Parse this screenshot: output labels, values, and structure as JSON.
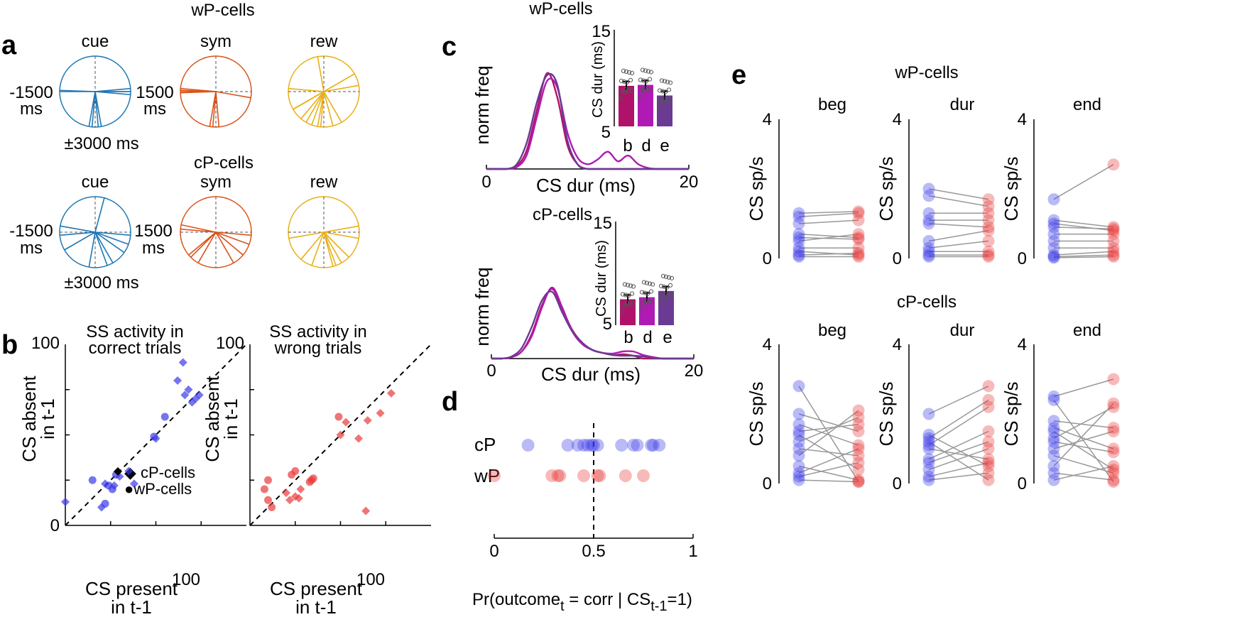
{
  "colors": {
    "cue": "#1f77b4",
    "sym": "#d9541a",
    "rew": "#e8b017",
    "wP": "#e83a3a",
    "cP": "#3a3ae8",
    "bar_b": "#b0126a",
    "bar_d": "#b01ab4",
    "bar_e": "#6b3a92"
  },
  "panels": {
    "a": {
      "label": "a",
      "top_title": "wP-cells",
      "mid_title": "cP-cells",
      "cue_label": "cue",
      "sym_label": "sym",
      "rew_label": "rew",
      "left_tick": "-1500",
      "left_unit": "ms",
      "right_tick": "1500",
      "right_unit": "ms",
      "bottom_tick": "±3000 ms"
    },
    "b": {
      "label": "b",
      "legend_cp": "◆ cP-cells",
      "legend_wp": "●wP-cells",
      "left_title_1": "SS activity in",
      "left_title_2": "correct trials",
      "right_title_1": "SS activity in",
      "right_title_2": "wrong trials",
      "ylabel_1": "CS absent",
      "ylabel_2": "in t-1",
      "xlabel_1": "CS present",
      "xlabel_2": "in t-1",
      "tick_0": "0",
      "tick_100": "100"
    },
    "c": {
      "label": "c",
      "wp_title": "wP-cells",
      "cp_title": "cP-cells",
      "ylabel": "norm freq",
      "xlabel": "CS dur (ms)",
      "xtick_0": "0",
      "xtick_20": "20",
      "inset_ylabel": "CS dur (ms)",
      "inset_tick_15": "15",
      "inset_tick_5": "5",
      "bar_b": "b",
      "bar_d": "d",
      "bar_e": "e"
    },
    "d": {
      "label": "d",
      "row_cp": "cP",
      "row_wp": "wP",
      "xtick_0": "0",
      "xtick_05": "0.5",
      "xtick_1": "1",
      "xlabel_main": "Pr(outcome",
      "xlabel_sub1": "t",
      "xlabel_mid": " = corr | CS",
      "xlabel_sub2": "t-1",
      "xlabel_end": "=1)"
    },
    "e": {
      "label": "e",
      "wp_title": "wP-cells",
      "cp_title": "cP-cells",
      "beg": "beg",
      "dur": "dur",
      "end": "end",
      "ylabel": "CS sp/s",
      "tick_4": "4",
      "tick_0": "0"
    }
  },
  "chart_data": [
    {
      "type": "polar",
      "name": "a-wP",
      "series": [
        {
          "name": "cue",
          "angles_deg": [
            0,
            0,
            5,
            -80,
            -85,
            -95,
            -100,
            178,
            180,
            -5
          ]
        },
        {
          "name": "sym",
          "angles_deg": [
            -10,
            -95,
            -100,
            -85,
            175,
            180,
            178,
            182
          ]
        },
        {
          "name": "rew",
          "angles_deg": [
            -95,
            -100,
            -110,
            -130,
            -60,
            -120,
            -150,
            -150,
            175,
            10,
            30,
            100,
            -75
          ]
        }
      ]
    },
    {
      "type": "polar",
      "name": "a-cP",
      "series": [
        {
          "name": "cue",
          "angles_deg": [
            -5,
            -20,
            -35,
            -60,
            -70,
            -100,
            -150,
            -175,
            170,
            75
          ]
        },
        {
          "name": "sym",
          "angles_deg": [
            -5,
            -20,
            -40,
            -60,
            -120,
            -135,
            -140,
            175,
            168
          ]
        },
        {
          "name": "rew",
          "angles_deg": [
            -10,
            -45,
            -60,
            -70,
            -75,
            -110,
            -130,
            -170,
            10
          ]
        }
      ]
    },
    {
      "type": "scatter",
      "name": "b-correct",
      "xlim": [
        0,
        100
      ],
      "ylim": [
        0,
        100
      ],
      "wP_points": [
        [
          15,
          25
        ],
        [
          22,
          12
        ],
        [
          24,
          22
        ],
        [
          26,
          20
        ],
        [
          28,
          28
        ],
        [
          49,
          49
        ],
        [
          55,
          60
        ]
      ],
      "cP_points": [
        [
          0,
          13
        ],
        [
          20,
          10
        ],
        [
          22,
          23
        ],
        [
          27,
          22
        ],
        [
          38,
          23
        ],
        [
          50,
          48
        ],
        [
          62,
          80
        ],
        [
          65,
          90
        ],
        [
          66,
          72
        ],
        [
          74,
          72
        ],
        [
          72,
          70
        ],
        [
          68,
          75
        ],
        [
          70,
          68
        ],
        [
          35,
          30
        ],
        [
          30,
          27
        ]
      ]
    },
    {
      "type": "scatter",
      "name": "b-wrong",
      "xlim": [
        0,
        100
      ],
      "ylim": [
        0,
        100
      ],
      "wP_points": [
        [
          8,
          20
        ],
        [
          10,
          14
        ],
        [
          10,
          25
        ],
        [
          12,
          10
        ],
        [
          23,
          28
        ],
        [
          25,
          30
        ],
        [
          34,
          25
        ],
        [
          35,
          26
        ],
        [
          33,
          24
        ],
        [
          49,
          60
        ]
      ],
      "cP_points": [
        [
          20,
          18
        ],
        [
          25,
          16
        ],
        [
          27,
          15
        ],
        [
          28,
          20
        ],
        [
          22,
          14
        ],
        [
          50,
          50
        ],
        [
          53,
          57
        ],
        [
          60,
          48
        ],
        [
          65,
          58
        ],
        [
          72,
          62
        ],
        [
          78,
          73
        ],
        [
          64,
          8
        ]
      ]
    },
    {
      "type": "line",
      "name": "c-wP-density",
      "xlim": [
        0,
        20
      ],
      "x": [
        0,
        1,
        2,
        3,
        4,
        5,
        6,
        7,
        8,
        9,
        10,
        11,
        12,
        13,
        14,
        15,
        16,
        17,
        18,
        19,
        20
      ],
      "series": [
        {
          "name": "b",
          "values": [
            0,
            0,
            0,
            0.03,
            0.2,
            0.62,
            1.0,
            0.75,
            0.25,
            0.05,
            0,
            0,
            0,
            0,
            0,
            0,
            0,
            0,
            0,
            0,
            0
          ]
        },
        {
          "name": "d",
          "values": [
            0,
            0,
            0,
            0.02,
            0.15,
            0.55,
            0.92,
            0.85,
            0.38,
            0.12,
            0.05,
            0.1,
            0.18,
            0.08,
            0.14,
            0.05,
            0.01,
            0,
            0,
            0,
            0
          ]
        },
        {
          "name": "e",
          "values": [
            0,
            0,
            0,
            0.05,
            0.28,
            0.7,
            0.98,
            0.88,
            0.3,
            0.05,
            0,
            0,
            0,
            0,
            0,
            0,
            0,
            0,
            0,
            0,
            0
          ]
        }
      ]
    },
    {
      "type": "bar",
      "name": "c-wP-inset",
      "categories": [
        "b",
        "d",
        "e"
      ],
      "values": [
        9.2,
        9.3,
        8.2
      ],
      "ylim": [
        5,
        15
      ]
    },
    {
      "type": "line",
      "name": "c-cP-density",
      "xlim": [
        0,
        20
      ],
      "x": [
        0,
        1,
        2,
        3,
        4,
        5,
        6,
        7,
        8,
        9,
        10,
        11,
        12,
        13,
        14,
        15,
        16,
        17,
        18,
        19,
        20
      ],
      "series": [
        {
          "name": "b",
          "values": [
            0,
            0,
            0.02,
            0.1,
            0.35,
            0.75,
            0.98,
            0.7,
            0.4,
            0.22,
            0.12,
            0.08,
            0.05,
            0.06,
            0.04,
            0,
            0,
            0,
            0,
            0,
            0
          ]
        },
        {
          "name": "d",
          "values": [
            0,
            0,
            0.02,
            0.1,
            0.32,
            0.72,
            1.0,
            0.72,
            0.38,
            0.2,
            0.12,
            0.08,
            0.07,
            0.1,
            0.1,
            0.05,
            0.02,
            0,
            0,
            0,
            0
          ]
        },
        {
          "name": "e",
          "values": [
            0,
            0,
            0.03,
            0.15,
            0.45,
            0.82,
            0.94,
            0.65,
            0.38,
            0.22,
            0.12,
            0.08,
            0.05,
            0.04,
            0.04,
            0.03,
            0.01,
            0,
            0,
            0,
            0
          ]
        }
      ]
    },
    {
      "type": "bar",
      "name": "c-cP-inset",
      "categories": [
        "b",
        "d",
        "e"
      ],
      "values": [
        7.5,
        7.7,
        8.3
      ],
      "ylim": [
        5,
        15
      ]
    },
    {
      "type": "scatter",
      "name": "d",
      "xlim": [
        0,
        1
      ],
      "cP": [
        0.17,
        0.37,
        0.42,
        0.45,
        0.47,
        0.49,
        0.5,
        0.52,
        0.64,
        0.7,
        0.72,
        0.79,
        0.8,
        0.83
      ],
      "wP": [
        0.0,
        0.29,
        0.32,
        0.33,
        0.45,
        0.52,
        0.53,
        0.66,
        0.75
      ]
    },
    {
      "type": "paired",
      "name": "e-wP",
      "ylim": [
        0,
        4
      ],
      "panels": [
        {
          "name": "beg",
          "before": [
            1.3,
            1.2,
            1.0,
            0.7,
            0.6,
            0.5,
            0.3,
            0.2,
            0.1,
            0.05
          ],
          "after": [
            1.35,
            1.3,
            1.1,
            0.6,
            0.55,
            0.7,
            0.3,
            0.1,
            0.15,
            0.05
          ]
        },
        {
          "name": "dur",
          "before": [
            2.0,
            1.8,
            1.3,
            1.1,
            1.0,
            0.5,
            0.3,
            0.2,
            0.1,
            0.05
          ],
          "after": [
            1.7,
            1.5,
            1.3,
            1.1,
            0.9,
            0.8,
            0.5,
            0.2,
            0.1,
            0.05
          ]
        },
        {
          "name": "end",
          "before": [
            1.7,
            1.1,
            1.0,
            0.9,
            0.7,
            0.5,
            0.3,
            0.1,
            0.05,
            0.02
          ],
          "after": [
            2.7,
            0.9,
            0.8,
            0.85,
            0.7,
            0.5,
            0.3,
            0.2,
            0.1,
            0.05
          ]
        }
      ]
    },
    {
      "type": "paired",
      "name": "e-cP",
      "ylim": [
        0,
        4
      ],
      "panels": [
        {
          "name": "beg",
          "before": [
            2.8,
            2.0,
            1.7,
            1.5,
            1.4,
            1.2,
            1.0,
            0.8,
            0.5,
            0.3,
            0.2,
            0.1
          ],
          "after": [
            0.05,
            1.5,
            1.1,
            1.7,
            0.4,
            1.9,
            0.8,
            2.1,
            0.1,
            1.0,
            0.6,
            0.05
          ]
        },
        {
          "name": "dur",
          "before": [
            2.0,
            1.4,
            1.3,
            1.2,
            1.1,
            1.0,
            0.7,
            0.6,
            0.4,
            0.2,
            0.1
          ],
          "after": [
            2.8,
            0.5,
            2.4,
            0.1,
            2.2,
            0.7,
            1.5,
            1.2,
            1.0,
            0.6,
            0.3
          ]
        },
        {
          "name": "end",
          "before": [
            2.5,
            2.4,
            1.8,
            1.6,
            1.5,
            1.3,
            1.2,
            1.0,
            0.8,
            0.5,
            0.3,
            0.1
          ],
          "after": [
            3.0,
            0.05,
            1.6,
            1.0,
            0.4,
            2.2,
            0.9,
            1.5,
            0.3,
            2.3,
            0.1,
            0.5
          ]
        }
      ]
    }
  ]
}
